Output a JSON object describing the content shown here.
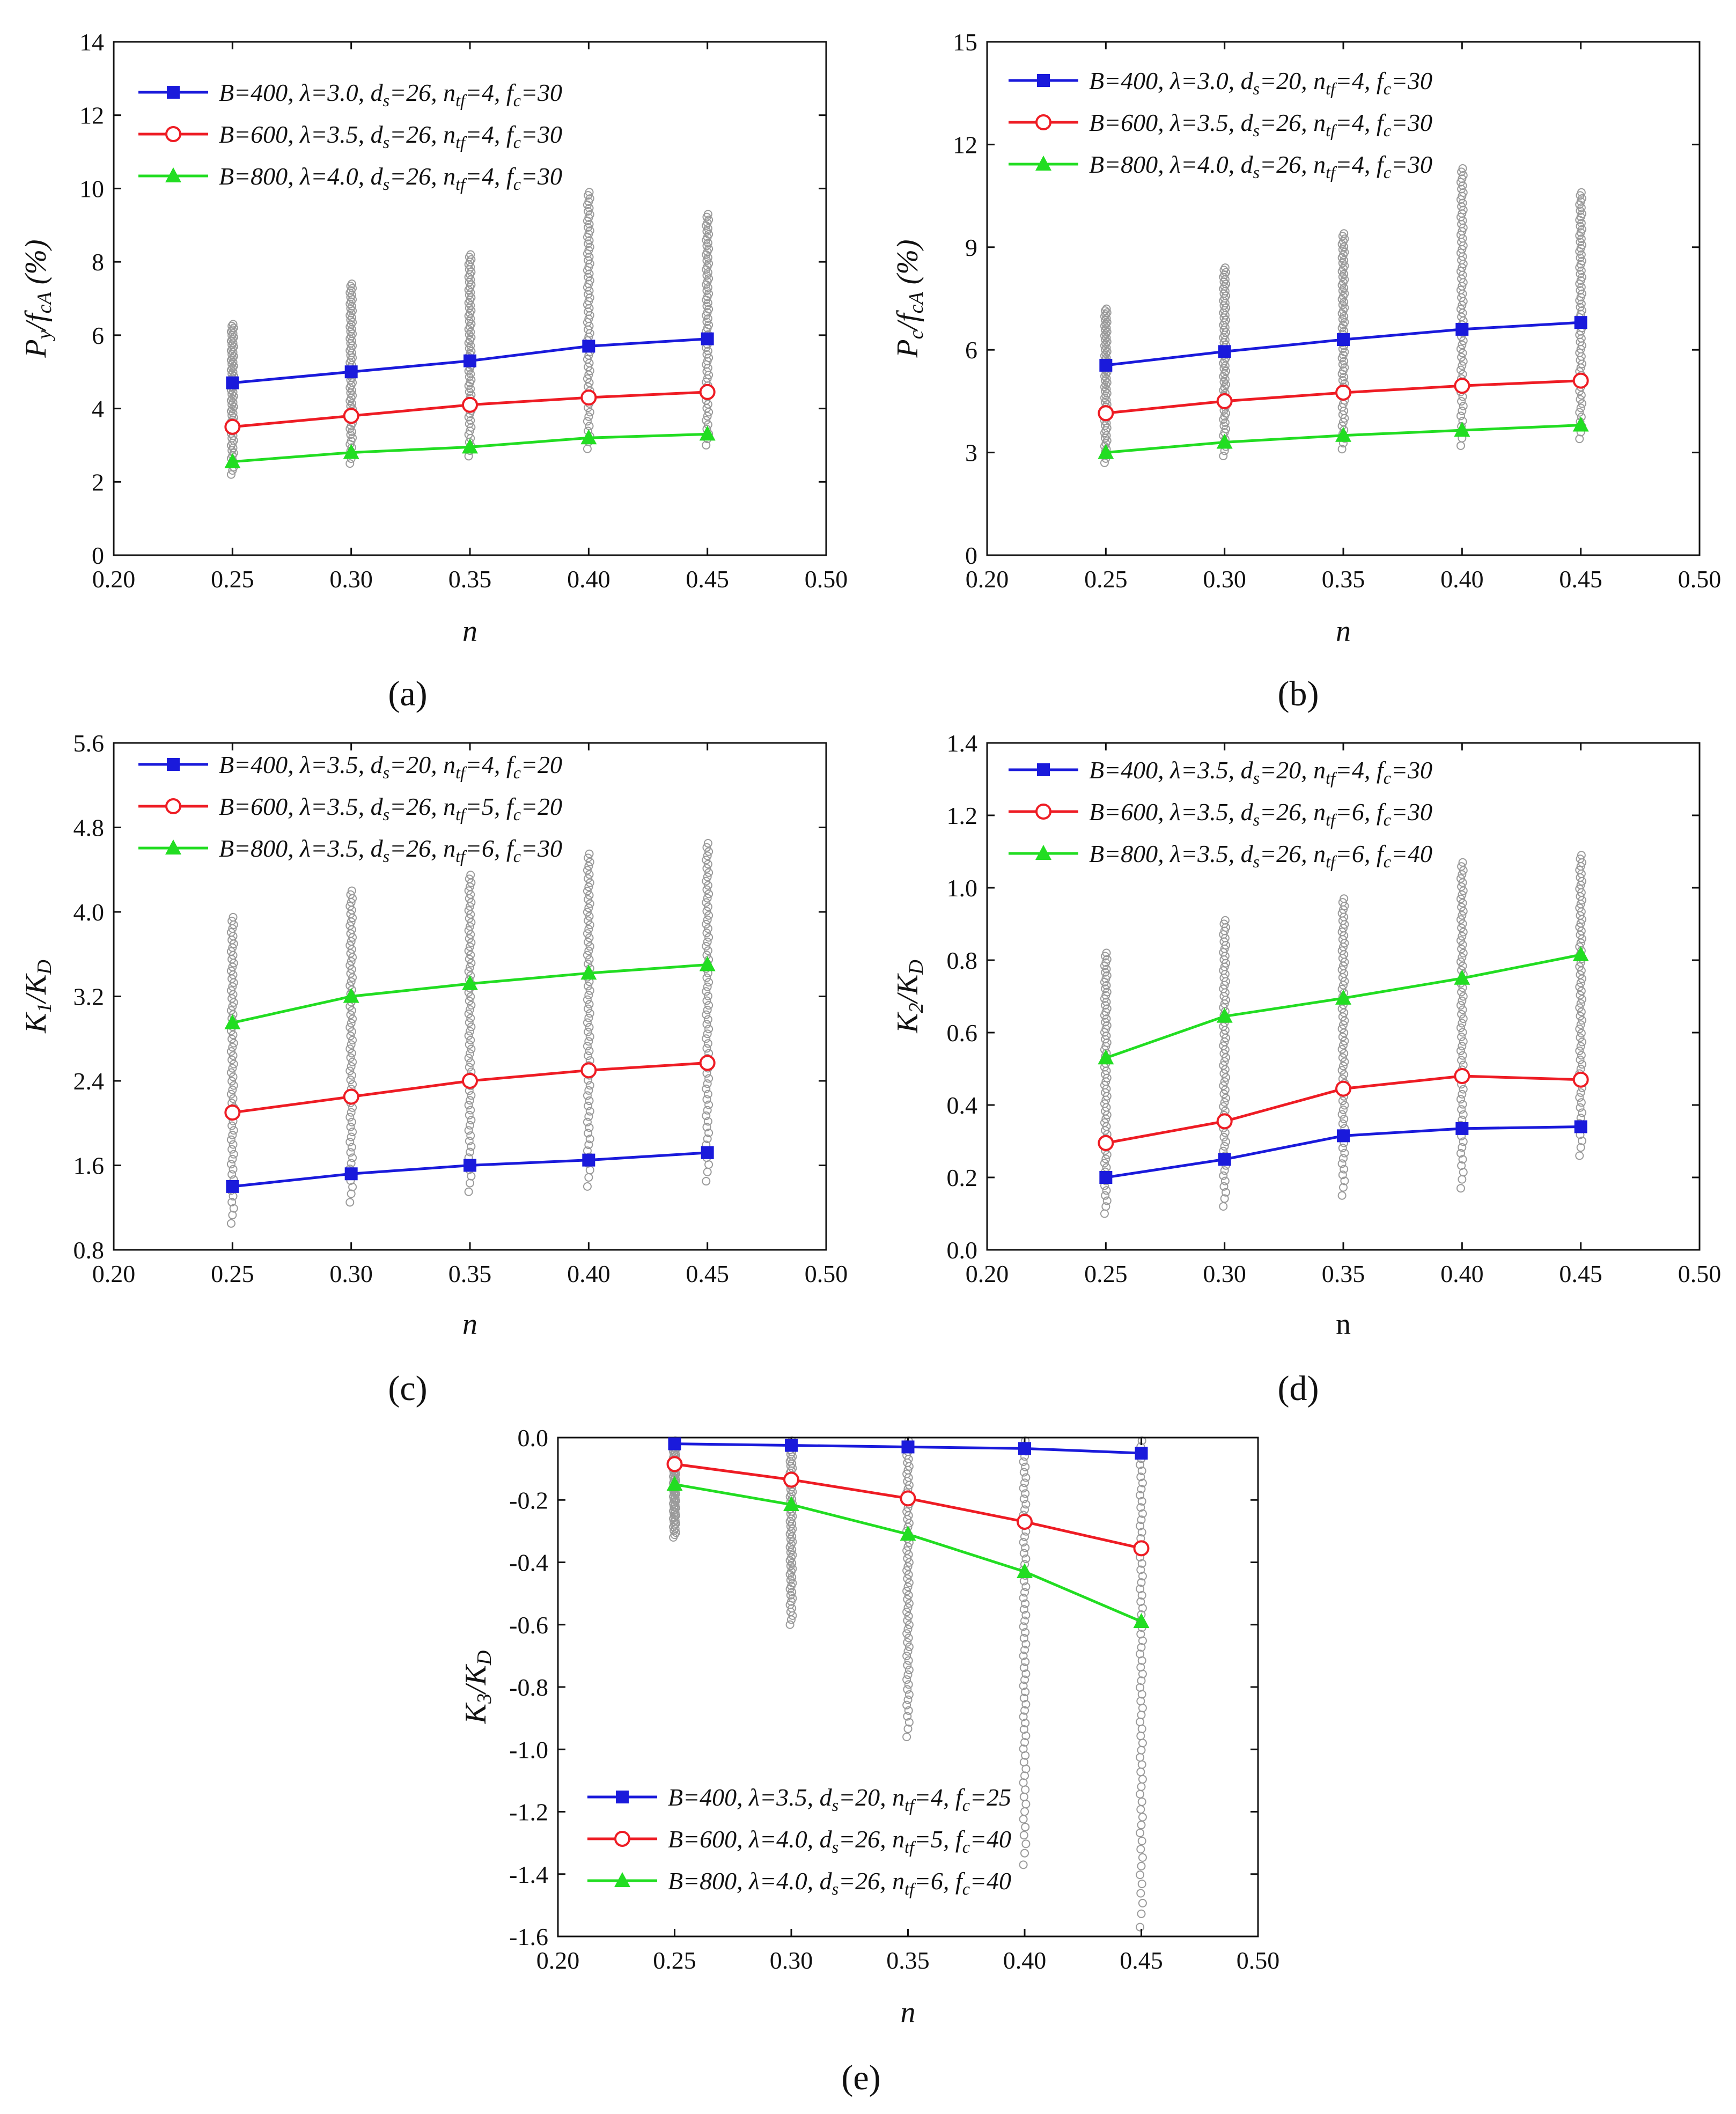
{
  "figure": {
    "panels": [
      {
        "id": "a",
        "label": "(a)"
      },
      {
        "id": "b",
        "label": "(b)"
      },
      {
        "id": "c",
        "label": "(c)"
      },
      {
        "id": "d",
        "label": "(d)"
      },
      {
        "id": "e",
        "label": "(e)"
      }
    ]
  },
  "chart_data": [
    {
      "panel": "(a)",
      "type": "line",
      "xlabel": "n",
      "ylabel": "P_y/f_cA (%)",
      "xlim": [
        0.2,
        0.5
      ],
      "ylim": [
        0,
        14
      ],
      "xticks": [
        "0.20",
        "0.25",
        "0.30",
        "0.35",
        "0.40",
        "0.45",
        "0.50"
      ],
      "yticks": [
        "0",
        "2",
        "4",
        "6",
        "8",
        "10",
        "12",
        "14"
      ],
      "x": [
        0.25,
        0.3,
        0.35,
        0.4,
        0.45
      ],
      "scatter_ranges": [
        [
          2.2,
          6.3
        ],
        [
          2.5,
          7.4
        ],
        [
          2.7,
          8.2
        ],
        [
          2.9,
          9.9
        ],
        [
          3.0,
          9.3
        ]
      ],
      "series": [
        {
          "name": "B=400, λ=3.0, d_s=26, n_tf=4, f_c=30",
          "color": "#1a1adb",
          "marker": "square",
          "values": [
            4.7,
            5.0,
            5.3,
            5.7,
            5.9
          ]
        },
        {
          "name": "B=600, λ=3.5, d_s=26, n_tf=4, f_c=30",
          "color": "#ee1c24",
          "marker": "circle",
          "values": [
            3.5,
            3.8,
            4.1,
            4.3,
            4.45
          ]
        },
        {
          "name": "B=800, λ=4.0, d_s=26, n_tf=4, f_c=30",
          "color": "#22dd22",
          "marker": "triangle",
          "values": [
            2.55,
            2.8,
            2.95,
            3.2,
            3.3
          ]
        }
      ]
    },
    {
      "panel": "(b)",
      "type": "line",
      "xlabel": "n",
      "ylabel": "P_c/f_cA (%)",
      "xlim": [
        0.2,
        0.5
      ],
      "ylim": [
        0,
        15
      ],
      "xticks": [
        "0.20",
        "0.25",
        "0.30",
        "0.35",
        "0.40",
        "0.45",
        "0.50"
      ],
      "yticks": [
        "0",
        "3",
        "6",
        "9",
        "12",
        "15"
      ],
      "x": [
        0.25,
        0.3,
        0.35,
        0.4,
        0.45
      ],
      "scatter_ranges": [
        [
          2.7,
          7.2
        ],
        [
          2.9,
          8.4
        ],
        [
          3.1,
          9.4
        ],
        [
          3.2,
          11.3
        ],
        [
          3.4,
          10.6
        ]
      ],
      "series": [
        {
          "name": "B=400, λ=3.0, d_s=20, n_tf=4, f_c=30",
          "color": "#1a1adb",
          "marker": "square",
          "values": [
            5.55,
            5.95,
            6.3,
            6.6,
            6.8
          ]
        },
        {
          "name": "B=600, λ=3.5, d_s=26, n_tf=4, f_c=30",
          "color": "#ee1c24",
          "marker": "circle",
          "values": [
            4.15,
            4.5,
            4.75,
            4.95,
            5.1
          ]
        },
        {
          "name": "B=800, λ=4.0, d_s=26, n_tf=4, f_c=30",
          "color": "#22dd22",
          "marker": "triangle",
          "values": [
            3.0,
            3.3,
            3.5,
            3.65,
            3.8
          ]
        }
      ]
    },
    {
      "panel": "(c)",
      "type": "line",
      "xlabel": "n",
      "ylabel": "K_1/K_D",
      "xlim": [
        0.2,
        0.5
      ],
      "ylim": [
        0.8,
        5.6
      ],
      "xticks": [
        "0.20",
        "0.25",
        "0.30",
        "0.35",
        "0.40",
        "0.45",
        "0.50"
      ],
      "yticks": [
        "0.8",
        "1.6",
        "2.4",
        "3.2",
        "4.0",
        "4.8",
        "5.6"
      ],
      "x": [
        0.25,
        0.3,
        0.35,
        0.4,
        0.45
      ],
      "scatter_ranges": [
        [
          1.05,
          3.95
        ],
        [
          1.25,
          4.2
        ],
        [
          1.35,
          4.35
        ],
        [
          1.4,
          4.55
        ],
        [
          1.45,
          4.65
        ]
      ],
      "series": [
        {
          "name": "B=400, λ=3.5, d_s=20, n_tf=4, f_c=20",
          "color": "#1a1adb",
          "marker": "square",
          "values": [
            1.4,
            1.52,
            1.6,
            1.65,
            1.72
          ]
        },
        {
          "name": "B=600, λ=3.5, d_s=26, n_tf=5, f_c=20",
          "color": "#ee1c24",
          "marker": "circle",
          "values": [
            2.1,
            2.25,
            2.4,
            2.5,
            2.57
          ]
        },
        {
          "name": "B=800, λ=3.5, d_s=26, n_tf=6, f_c=30",
          "color": "#22dd22",
          "marker": "triangle",
          "values": [
            2.95,
            3.2,
            3.32,
            3.42,
            3.5
          ]
        }
      ]
    },
    {
      "panel": "(d)",
      "type": "line",
      "xlabel": "n",
      "ylabel": "K_2/K_D",
      "xlim": [
        0.2,
        0.5
      ],
      "ylim": [
        0.0,
        1.4
      ],
      "xticks": [
        "0.20",
        "0.25",
        "0.30",
        "0.35",
        "0.40",
        "0.45",
        "0.50"
      ],
      "yticks": [
        "0.0",
        "0.2",
        "0.4",
        "0.6",
        "0.8",
        "1.0",
        "1.2",
        "1.4"
      ],
      "x": [
        0.25,
        0.3,
        0.35,
        0.4,
        0.45
      ],
      "scatter_ranges": [
        [
          0.1,
          0.82
        ],
        [
          0.12,
          0.91
        ],
        [
          0.15,
          0.97
        ],
        [
          0.17,
          1.07
        ],
        [
          0.26,
          1.09
        ]
      ],
      "series": [
        {
          "name": "B=400, λ=3.5, d_s=20, n_tf=4, f_c=30",
          "color": "#1a1adb",
          "marker": "square",
          "values": [
            0.2,
            0.25,
            0.315,
            0.335,
            0.34
          ]
        },
        {
          "name": "B=600, λ=3.5, d_s=26, n_tf=6, f_c=30",
          "color": "#ee1c24",
          "marker": "circle",
          "values": [
            0.295,
            0.355,
            0.445,
            0.48,
            0.47
          ]
        },
        {
          "name": "B=800, λ=3.5, d_s=26, n_tf=6, f_c=40",
          "color": "#22dd22",
          "marker": "triangle",
          "values": [
            0.53,
            0.645,
            0.695,
            0.75,
            0.815
          ]
        }
      ]
    },
    {
      "panel": "(e)",
      "type": "line",
      "xlabel": "n",
      "ylabel": "K_3/K_D",
      "xlim": [
        0.2,
        0.5
      ],
      "ylim": [
        -1.6,
        0.0
      ],
      "xticks": [
        "0.20",
        "0.25",
        "0.30",
        "0.35",
        "0.40",
        "0.45",
        "0.50"
      ],
      "yticks": [
        "-1.6",
        "-1.4",
        "-1.2",
        "-1.0",
        "-0.8",
        "-0.6",
        "-0.4",
        "-0.2",
        "0.0"
      ],
      "x": [
        0.25,
        0.3,
        0.35,
        0.4,
        0.45
      ],
      "scatter_ranges": [
        [
          -0.32,
          -0.01
        ],
        [
          -0.6,
          -0.01
        ],
        [
          -0.96,
          -0.01
        ],
        [
          -1.37,
          -0.01
        ],
        [
          -1.57,
          -0.01
        ]
      ],
      "series": [
        {
          "name": "B=400, λ=3.5, d_s=20, n_tf=4, f_c=25",
          "color": "#1a1adb",
          "marker": "square",
          "values": [
            -0.02,
            -0.025,
            -0.03,
            -0.035,
            -0.05
          ]
        },
        {
          "name": "B=600, λ=4.0, d_s=26, n_tf=5, f_c=40",
          "color": "#ee1c24",
          "marker": "circle",
          "values": [
            -0.085,
            -0.135,
            -0.195,
            -0.27,
            -0.355
          ]
        },
        {
          "name": "B=800, λ=4.0, d_s=26, n_tf=6, f_c=40",
          "color": "#22dd22",
          "marker": "triangle",
          "values": [
            -0.15,
            -0.215,
            -0.31,
            -0.43,
            -0.59
          ]
        }
      ]
    }
  ]
}
